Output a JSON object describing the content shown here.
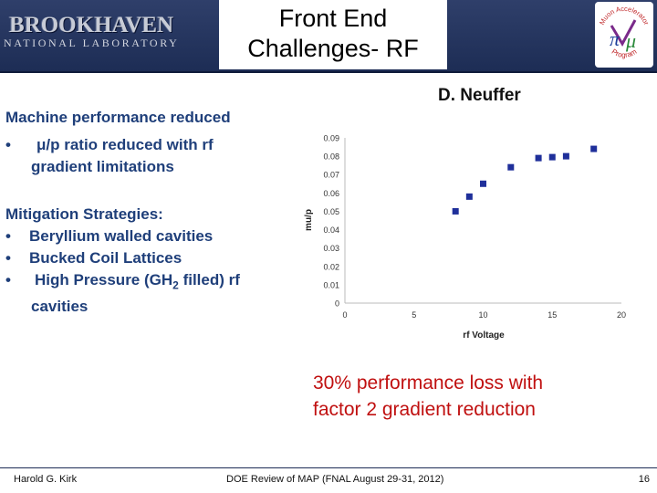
{
  "header": {
    "logo_name": "BROOKHAVEN",
    "logo_subtitle": "NATIONAL LABORATORY",
    "title_line1": "Front End",
    "title_line2": "Challenges- RF",
    "map_logo": {
      "top_text": "Muon Accelerator",
      "bottom_text": "Program"
    }
  },
  "author": "D. Neuffer",
  "left_content": {
    "heading": "Machine performance reduced",
    "bullet1_line1": "μ/p ratio reduced with rf",
    "bullet1_line2": "gradient limitations",
    "mitigation_heading": "Mitigation Strategies:",
    "mitigation_items": [
      "Beryllium walled cavities",
      "Bucked Coil Lattices"
    ],
    "mitigation_item3_pre": "High Pressure (GH",
    "mitigation_item3_sub": "2",
    "mitigation_item3_post": " filled) rf",
    "mitigation_item3_line2": "cavities",
    "bullet_char": "•"
  },
  "chart_data": {
    "type": "scatter",
    "xlabel": "rf Voltage",
    "ylabel": "mu/p",
    "xlim": [
      0,
      20
    ],
    "ylim": [
      0,
      0.09
    ],
    "x_ticks": [
      "0",
      "5",
      "10",
      "15",
      "20"
    ],
    "y_ticks": [
      "0",
      "0.01",
      "0.02",
      "0.03",
      "0.04",
      "0.05",
      "0.06",
      "0.07",
      "0.08",
      "0.09"
    ],
    "x": [
      8,
      9,
      10,
      12,
      14,
      15,
      16,
      18
    ],
    "y": [
      0.05,
      0.058,
      0.065,
      0.074,
      0.079,
      0.0795,
      0.08,
      0.084
    ],
    "marker_color": "#1f2f9a",
    "grid": false
  },
  "conclusion_line1": "30% performance loss with",
  "conclusion_line2": "factor 2 gradient reduction",
  "footer": {
    "left": "Harold G. Kirk",
    "center": "DOE Review of MAP (FNAL August 29-31, 2012)",
    "right": "16"
  }
}
